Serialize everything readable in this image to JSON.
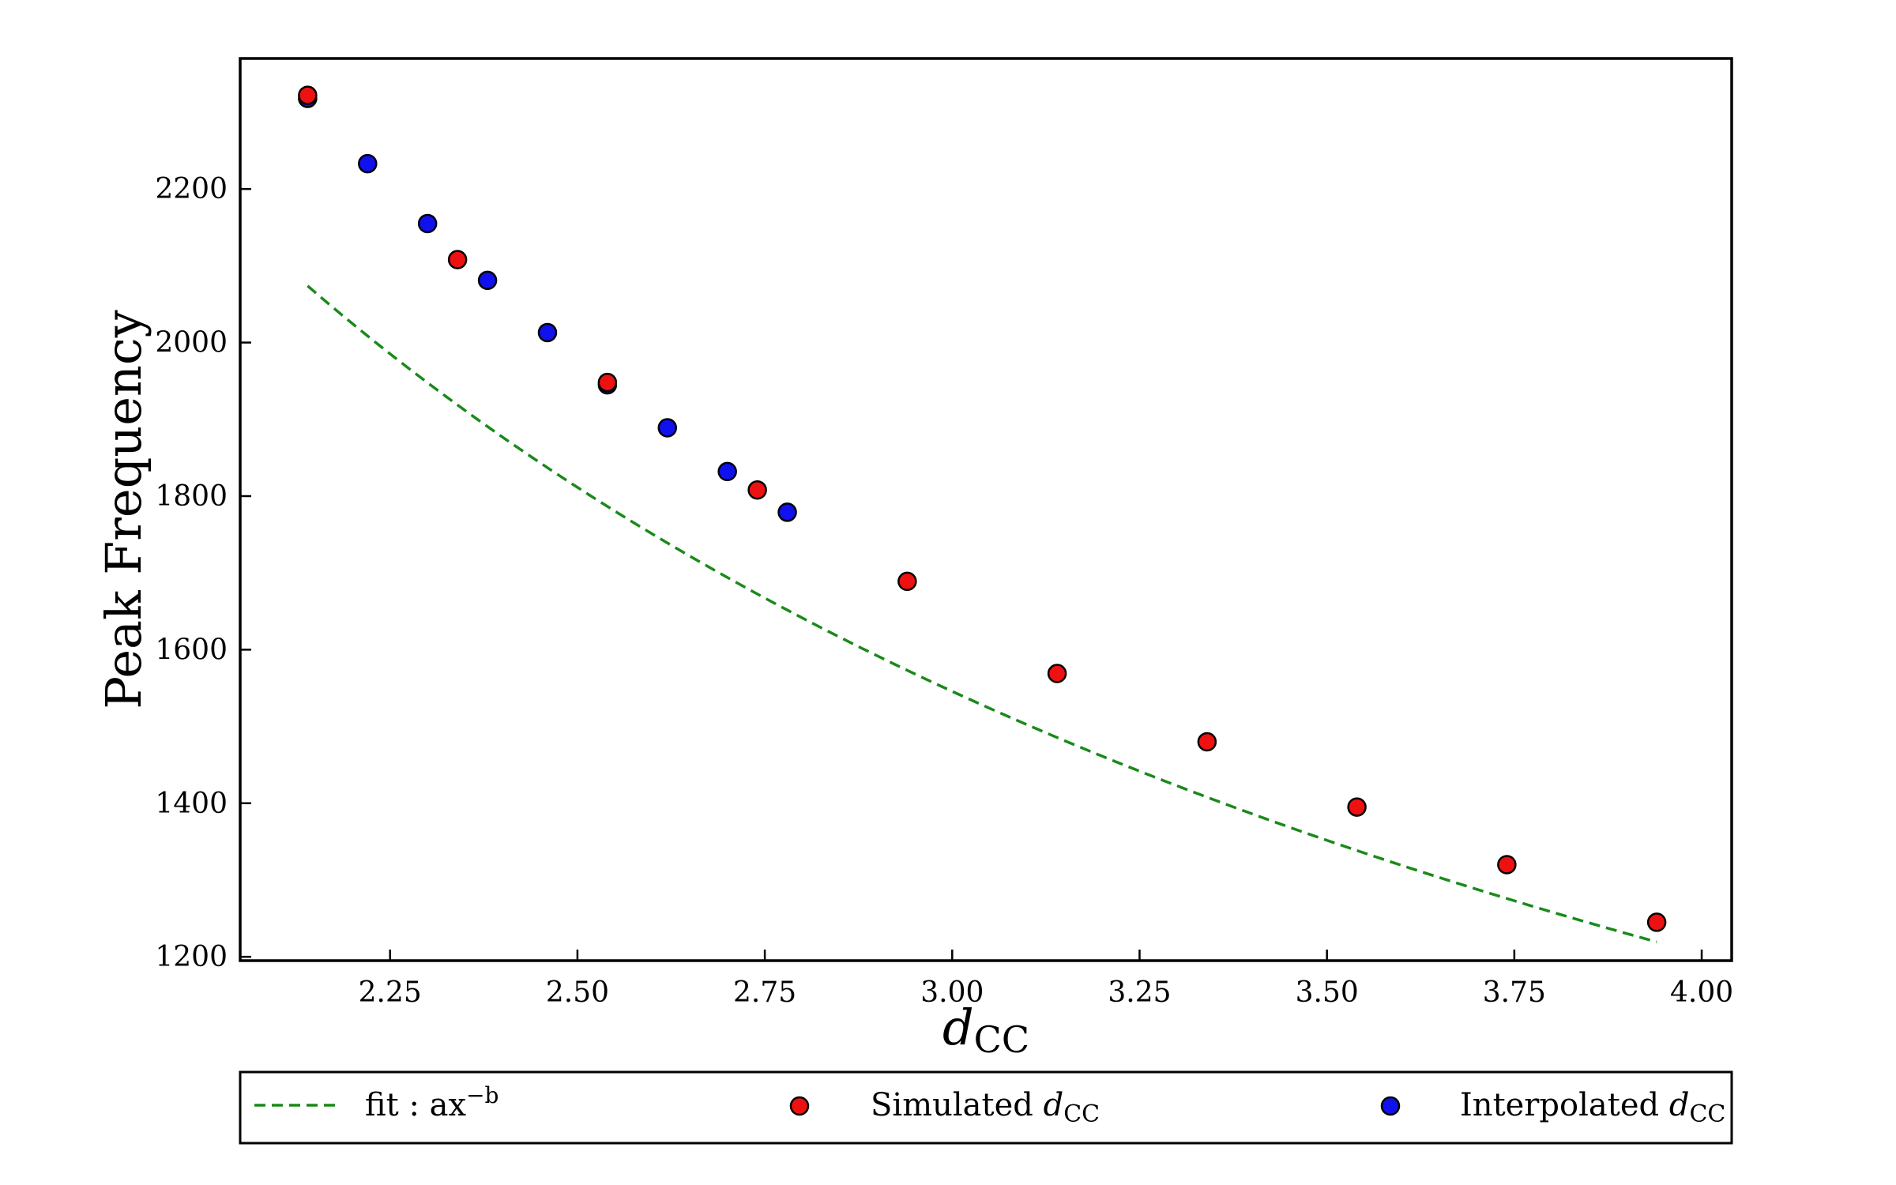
{
  "chart_data": {
    "type": "scatter",
    "xlabel": {
      "main": "d",
      "sub": "CC"
    },
    "ylabel": "Peak Frequency",
    "xlim": [
      2.05,
      4.04
    ],
    "ylim": [
      1195,
      2370
    ],
    "x_ticks": [
      2.25,
      2.5,
      2.75,
      3.0,
      3.25,
      3.5,
      3.75,
      4.0
    ],
    "x_tick_labels": [
      "2.25",
      "2.50",
      "2.75",
      "3.00",
      "3.25",
      "3.50",
      "3.75",
      "4.00"
    ],
    "y_ticks": [
      1200,
      1400,
      1600,
      1800,
      2000,
      2200
    ],
    "y_tick_labels": [
      "1200",
      "1400",
      "1600",
      "1800",
      "2000",
      "2200"
    ],
    "grid": false,
    "legend_placement": "below",
    "series": [
      {
        "name": "fit: ax^-b",
        "legend_label": {
          "text": "fit :  ax",
          "sup": "−b"
        },
        "kind": "line",
        "style": "dashed",
        "color": "#1a8a1a",
        "fit": {
          "a": 4020,
          "b": 0.87
        },
        "x_range": [
          2.14,
          3.94
        ]
      },
      {
        "name": "Simulated d_CC",
        "legend_label": {
          "text": "Simulated ",
          "italic": "d",
          "sub": "CC"
        },
        "kind": "scatter",
        "color": "#ee1111",
        "x": [
          2.14,
          2.34,
          2.54,
          2.74,
          2.94,
          3.14,
          3.34,
          3.54,
          3.74,
          3.94
        ],
        "y": [
          2322,
          2108,
          1948,
          1808,
          1689,
          1569,
          1480,
          1395,
          1320,
          1245
        ]
      },
      {
        "name": "Interpolated d_CC",
        "legend_label": {
          "text": "Interpolated ",
          "italic": "d",
          "sub": "CC"
        },
        "kind": "scatter",
        "color": "#1111ee",
        "x": [
          2.14,
          2.22,
          2.3,
          2.38,
          2.46,
          2.54,
          2.62,
          2.7,
          2.78
        ],
        "y": [
          2318,
          2233,
          2155,
          2081,
          2013,
          1945,
          1889,
          1832,
          1779
        ]
      }
    ]
  }
}
